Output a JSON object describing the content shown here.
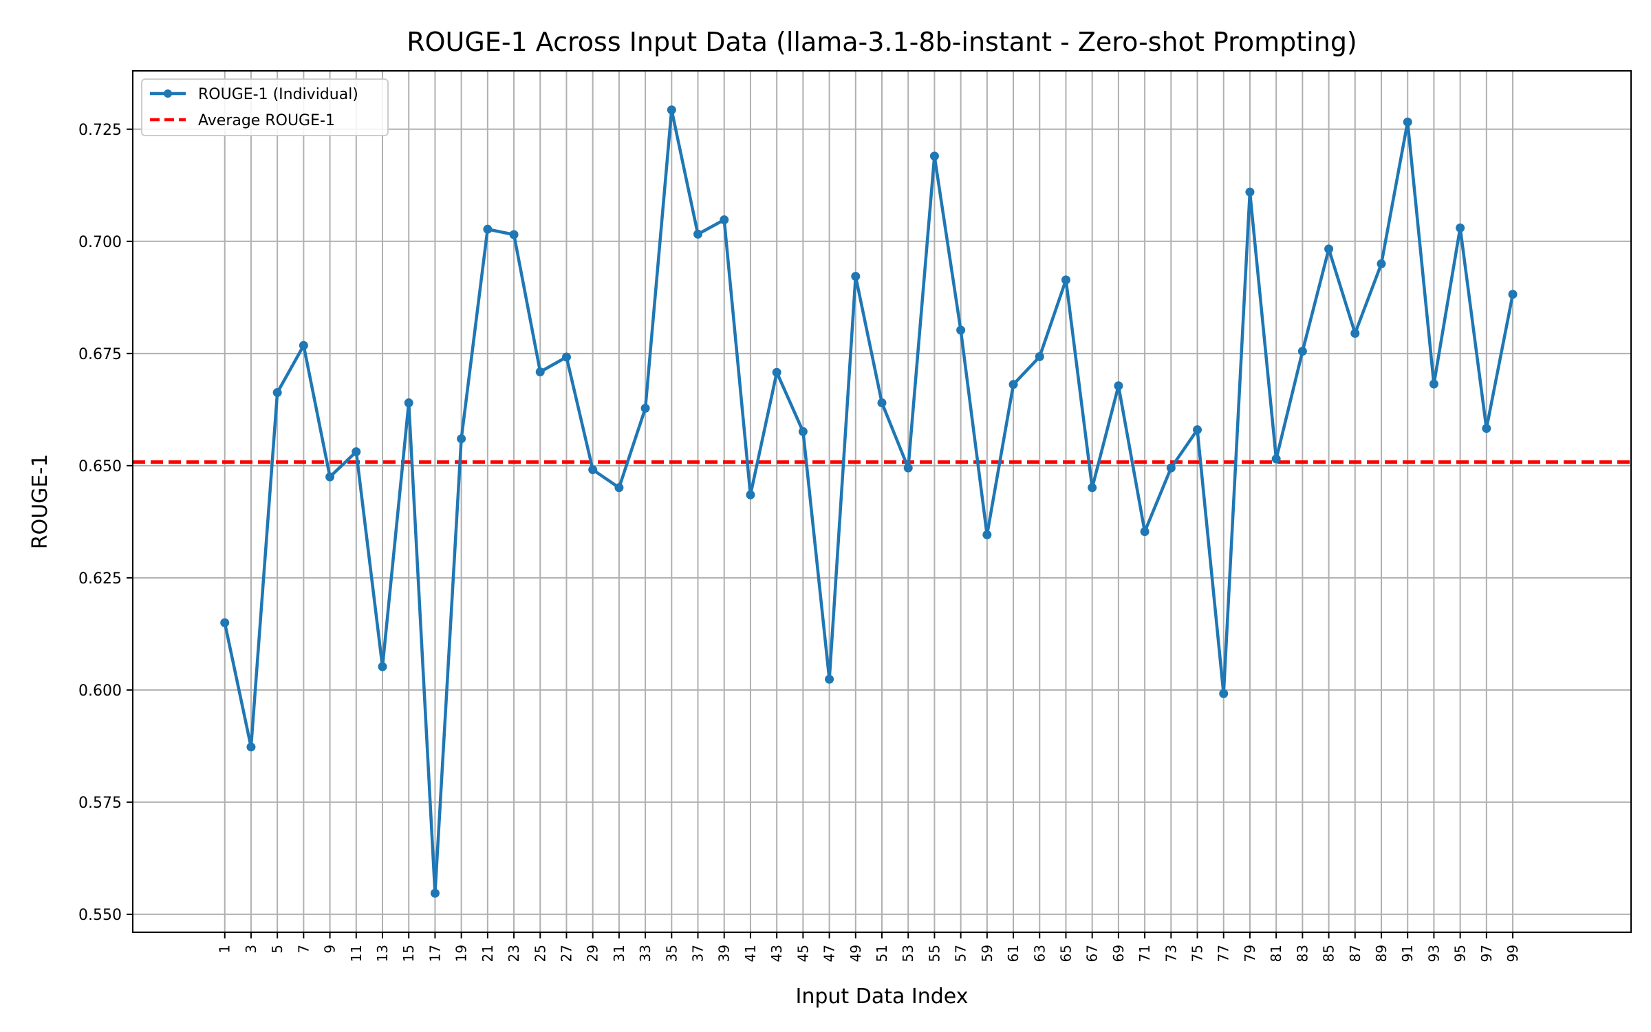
{
  "chart_data": {
    "type": "line",
    "title": "ROUGE-1 Across Input Data (llama-3.1-8b-instant - Zero-shot Prompting)",
    "xlabel": "Input Data Index",
    "ylabel": "ROUGE-1",
    "x": [
      1,
      3,
      5,
      7,
      9,
      11,
      13,
      15,
      17,
      19,
      21,
      23,
      25,
      27,
      29,
      31,
      33,
      35,
      37,
      39,
      41,
      43,
      45,
      47,
      49,
      51,
      53,
      55,
      57,
      59,
      61,
      63,
      65,
      67,
      69,
      71,
      73,
      75,
      77,
      79,
      81,
      83,
      85,
      87,
      89,
      91,
      93,
      95,
      97,
      99
    ],
    "x_ticks": [
      "1",
      "3",
      "5",
      "7",
      "9",
      "11",
      "13",
      "15",
      "17",
      "19",
      "21",
      "23",
      "25",
      "27",
      "29",
      "31",
      "33",
      "35",
      "37",
      "39",
      "41",
      "43",
      "45",
      "47",
      "49",
      "51",
      "53",
      "55",
      "57",
      "59",
      "61",
      "63",
      "65",
      "67",
      "69",
      "71",
      "73",
      "75",
      "77",
      "79",
      "81",
      "83",
      "85",
      "87",
      "89",
      "91",
      "93",
      "95",
      "97",
      "99"
    ],
    "xlim": [
      -6.0,
      108.0
    ],
    "ylim": [
      0.546,
      0.738
    ],
    "y_ticks": [
      0.55,
      0.575,
      0.6,
      0.625,
      0.65,
      0.675,
      0.7,
      0.725
    ],
    "y_tick_labels": [
      "0.550",
      "0.575",
      "0.600",
      "0.625",
      "0.650",
      "0.675",
      "0.700",
      "0.725"
    ],
    "grid": true,
    "legend_position": "top-left",
    "series": [
      {
        "name": "ROUGE-1 (Individual)",
        "color": "#1f77b4",
        "style": "solid-with-markers",
        "values": [
          0.615,
          0.5873,
          0.6663,
          0.6768,
          0.6475,
          0.6531,
          0.6052,
          0.664,
          0.5547,
          0.656,
          0.7027,
          0.7015,
          0.6709,
          0.6742,
          0.6491,
          0.6451,
          0.6628,
          0.7293,
          0.7016,
          0.7048,
          0.6435,
          0.6708,
          0.6576,
          0.6024,
          0.6922,
          0.664,
          0.6495,
          0.719,
          0.6802,
          0.6346,
          0.6681,
          0.6743,
          0.6914,
          0.6451,
          0.6678,
          0.6353,
          0.6495,
          0.658,
          0.5992,
          0.711,
          0.6515,
          0.6755,
          0.6983,
          0.6795,
          0.695,
          0.7266,
          0.6682,
          0.703,
          0.6583,
          0.6882
        ]
      },
      {
        "name": "Average ROUGE-1",
        "color": "#ff0000",
        "style": "dashed",
        "constant": 0.6508
      }
    ]
  }
}
